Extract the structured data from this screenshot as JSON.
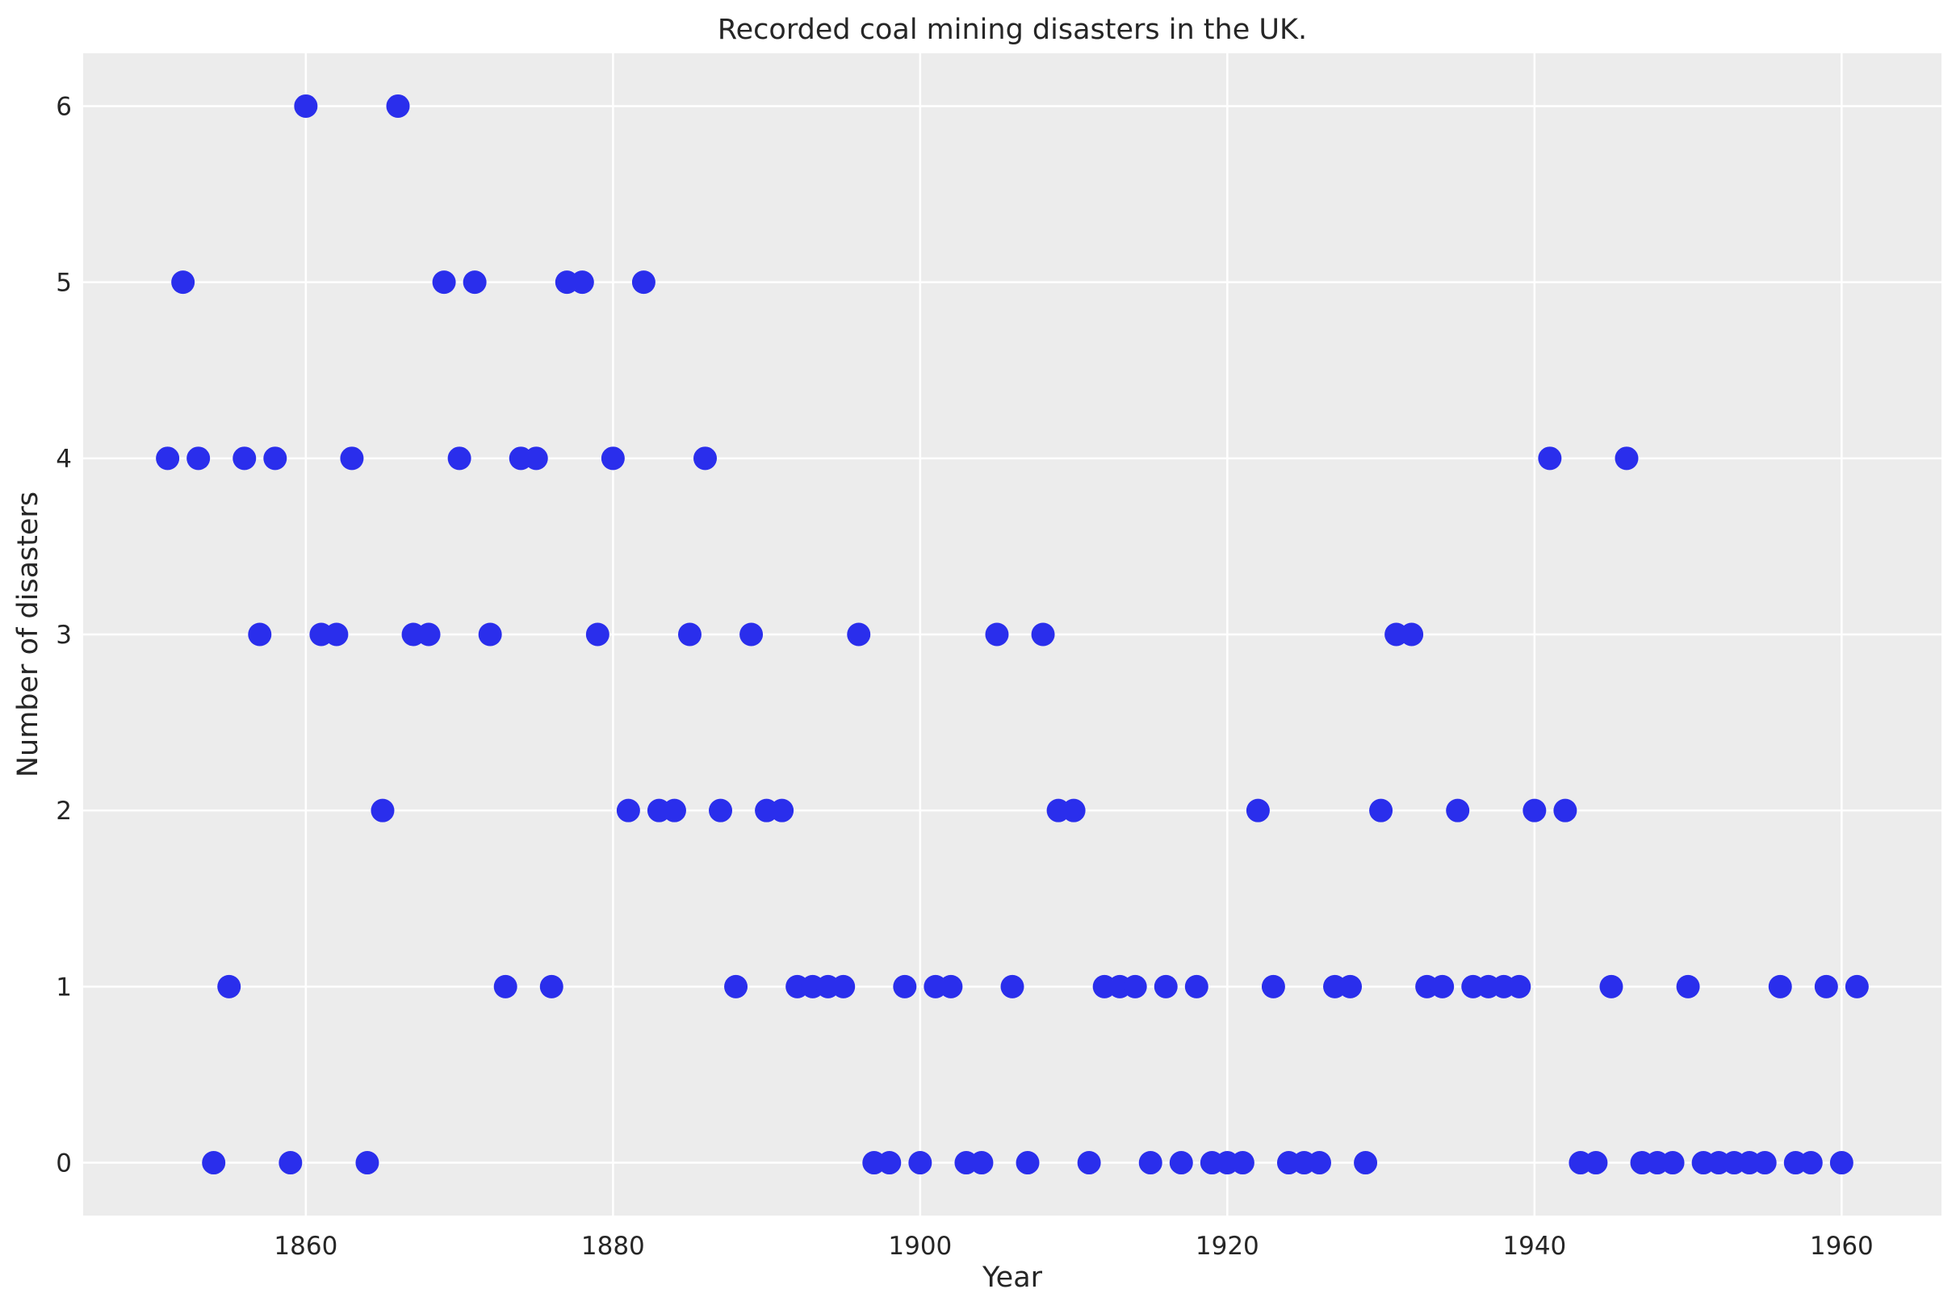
{
  "chart_data": {
    "type": "scatter",
    "title": "Recorded coal mining disasters in the UK.",
    "xlabel": "Year",
    "ylabel": "Number of disasters",
    "xlim": [
      1845.5,
      1966.5
    ],
    "ylim": [
      -0.3,
      6.3
    ],
    "xticks": [
      "1860",
      "1880",
      "1900",
      "1920",
      "1940",
      "1960"
    ],
    "yticks": [
      "0",
      "1",
      "2",
      "3",
      "4",
      "5",
      "6"
    ],
    "grid": true,
    "background": "#ececec",
    "grid_color": "#ffffff",
    "marker_color": "#2a2eec",
    "x": [
      1851,
      1852,
      1853,
      1854,
      1855,
      1856,
      1857,
      1858,
      1859,
      1860,
      1861,
      1862,
      1863,
      1864,
      1865,
      1866,
      1867,
      1868,
      1869,
      1870,
      1871,
      1872,
      1873,
      1874,
      1875,
      1876,
      1877,
      1878,
      1879,
      1880,
      1881,
      1882,
      1883,
      1884,
      1885,
      1886,
      1887,
      1888,
      1889,
      1890,
      1891,
      1892,
      1893,
      1894,
      1895,
      1896,
      1897,
      1898,
      1899,
      1900,
      1901,
      1902,
      1903,
      1904,
      1905,
      1906,
      1907,
      1908,
      1909,
      1910,
      1911,
      1912,
      1913,
      1914,
      1915,
      1916,
      1917,
      1918,
      1919,
      1920,
      1921,
      1922,
      1923,
      1924,
      1925,
      1926,
      1927,
      1928,
      1929,
      1930,
      1931,
      1932,
      1933,
      1934,
      1935,
      1936,
      1937,
      1938,
      1939,
      1940,
      1941,
      1942,
      1943,
      1944,
      1945,
      1946,
      1947,
      1948,
      1949,
      1950,
      1951,
      1952,
      1953,
      1954,
      1955,
      1956,
      1957,
      1958,
      1959,
      1960,
      1961
    ],
    "y": [
      4,
      5,
      4,
      0,
      1,
      4,
      3,
      4,
      0,
      6,
      3,
      3,
      4,
      0,
      2,
      6,
      3,
      3,
      5,
      4,
      5,
      3,
      1,
      4,
      4,
      1,
      5,
      5,
      3,
      4,
      2,
      5,
      2,
      2,
      3,
      4,
      2,
      1,
      3,
      2,
      2,
      1,
      1,
      1,
      1,
      3,
      0,
      0,
      1,
      0,
      1,
      1,
      0,
      0,
      3,
      1,
      0,
      3,
      2,
      2,
      0,
      1,
      1,
      1,
      0,
      1,
      0,
      1,
      0,
      0,
      0,
      2,
      1,
      0,
      0,
      0,
      1,
      1,
      0,
      2,
      3,
      3,
      1,
      1,
      2,
      1,
      1,
      1,
      1,
      2,
      4,
      2,
      0,
      0,
      1,
      4,
      0,
      0,
      0,
      1,
      0,
      0,
      0,
      0,
      0,
      1,
      0,
      0,
      1,
      0,
      1
    ]
  }
}
